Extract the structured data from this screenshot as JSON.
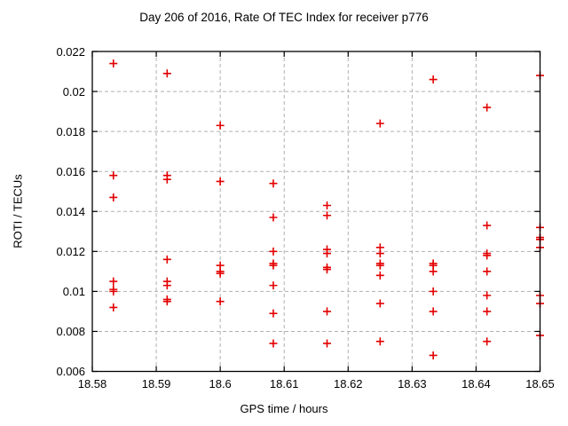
{
  "window": {
    "background": "#ffffff",
    "text_color": "#000000"
  },
  "chart_data": {
    "type": "scatter",
    "title": "Day 206 of 2016, Rate Of TEC Index for receiver p776",
    "xlabel": "GPS time / hours",
    "ylabel": "ROTI / TECUs",
    "xlim": [
      18.58,
      18.65
    ],
    "ylim": [
      0.006,
      0.022
    ],
    "grid": true,
    "legend": "none",
    "marker": "plus",
    "marker_color": "#e30000",
    "grid_color": "#b0b0b0",
    "border_color": "#000000",
    "x_ticks": [
      {
        "v": 18.58,
        "label": "18.58"
      },
      {
        "v": 18.59,
        "label": "18.59"
      },
      {
        "v": 18.6,
        "label": "18.6"
      },
      {
        "v": 18.61,
        "label": "18.61"
      },
      {
        "v": 18.62,
        "label": "18.62"
      },
      {
        "v": 18.63,
        "label": "18.63"
      },
      {
        "v": 18.64,
        "label": "18.64"
      },
      {
        "v": 18.65,
        "label": "18.65"
      }
    ],
    "y_ticks": [
      {
        "v": 0.006,
        "label": "0.006"
      },
      {
        "v": 0.008,
        "label": "0.008"
      },
      {
        "v": 0.01,
        "label": "0.01"
      },
      {
        "v": 0.012,
        "label": "0.012"
      },
      {
        "v": 0.014,
        "label": "0.014"
      },
      {
        "v": 0.016,
        "label": "0.016"
      },
      {
        "v": 0.018,
        "label": "0.018"
      },
      {
        "v": 0.02,
        "label": "0.02"
      },
      {
        "v": 0.022,
        "label": "0.022"
      }
    ],
    "series": [
      {
        "name": "ROTI",
        "points": [
          [
            18.5833,
            0.0214
          ],
          [
            18.5833,
            0.0158
          ],
          [
            18.5833,
            0.0147
          ],
          [
            18.5833,
            0.0105
          ],
          [
            18.5833,
            0.0101
          ],
          [
            18.5833,
            0.01
          ],
          [
            18.5833,
            0.0092
          ],
          [
            18.5917,
            0.0209
          ],
          [
            18.5917,
            0.0158
          ],
          [
            18.5917,
            0.0156
          ],
          [
            18.5917,
            0.0116
          ],
          [
            18.5917,
            0.0105
          ],
          [
            18.5917,
            0.0103
          ],
          [
            18.5917,
            0.0096
          ],
          [
            18.5917,
            0.0095
          ],
          [
            18.6,
            0.0183
          ],
          [
            18.6,
            0.0155
          ],
          [
            18.6,
            0.0113
          ],
          [
            18.6,
            0.011
          ],
          [
            18.6,
            0.0109
          ],
          [
            18.6,
            0.0095
          ],
          [
            18.6083,
            0.0154
          ],
          [
            18.6083,
            0.0137
          ],
          [
            18.6083,
            0.012
          ],
          [
            18.6083,
            0.0114
          ],
          [
            18.6083,
            0.0113
          ],
          [
            18.6083,
            0.0103
          ],
          [
            18.6083,
            0.0089
          ],
          [
            18.6083,
            0.0074
          ],
          [
            18.6167,
            0.0143
          ],
          [
            18.6167,
            0.0138
          ],
          [
            18.6167,
            0.0121
          ],
          [
            18.6167,
            0.0119
          ],
          [
            18.6167,
            0.0112
          ],
          [
            18.6167,
            0.0111
          ],
          [
            18.6167,
            0.009
          ],
          [
            18.6167,
            0.0074
          ],
          [
            18.625,
            0.0184
          ],
          [
            18.625,
            0.0122
          ],
          [
            18.625,
            0.0119
          ],
          [
            18.625,
            0.0114
          ],
          [
            18.625,
            0.0113
          ],
          [
            18.625,
            0.0108
          ],
          [
            18.625,
            0.0094
          ],
          [
            18.625,
            0.0075
          ],
          [
            18.6333,
            0.0206
          ],
          [
            18.6333,
            0.0114
          ],
          [
            18.6333,
            0.0113
          ],
          [
            18.6333,
            0.011
          ],
          [
            18.6333,
            0.01
          ],
          [
            18.6333,
            0.009
          ],
          [
            18.6333,
            0.0068
          ],
          [
            18.6417,
            0.0192
          ],
          [
            18.6417,
            0.0133
          ],
          [
            18.6417,
            0.0119
          ],
          [
            18.6417,
            0.0118
          ],
          [
            18.6417,
            0.011
          ],
          [
            18.6417,
            0.0098
          ],
          [
            18.6417,
            0.009
          ],
          [
            18.6417,
            0.0075
          ],
          [
            18.65,
            0.0208
          ],
          [
            18.65,
            0.0132
          ],
          [
            18.65,
            0.0127
          ],
          [
            18.65,
            0.0126
          ],
          [
            18.65,
            0.0122
          ],
          [
            18.65,
            0.0098
          ],
          [
            18.65,
            0.0094
          ],
          [
            18.65,
            0.0078
          ]
        ]
      }
    ]
  }
}
